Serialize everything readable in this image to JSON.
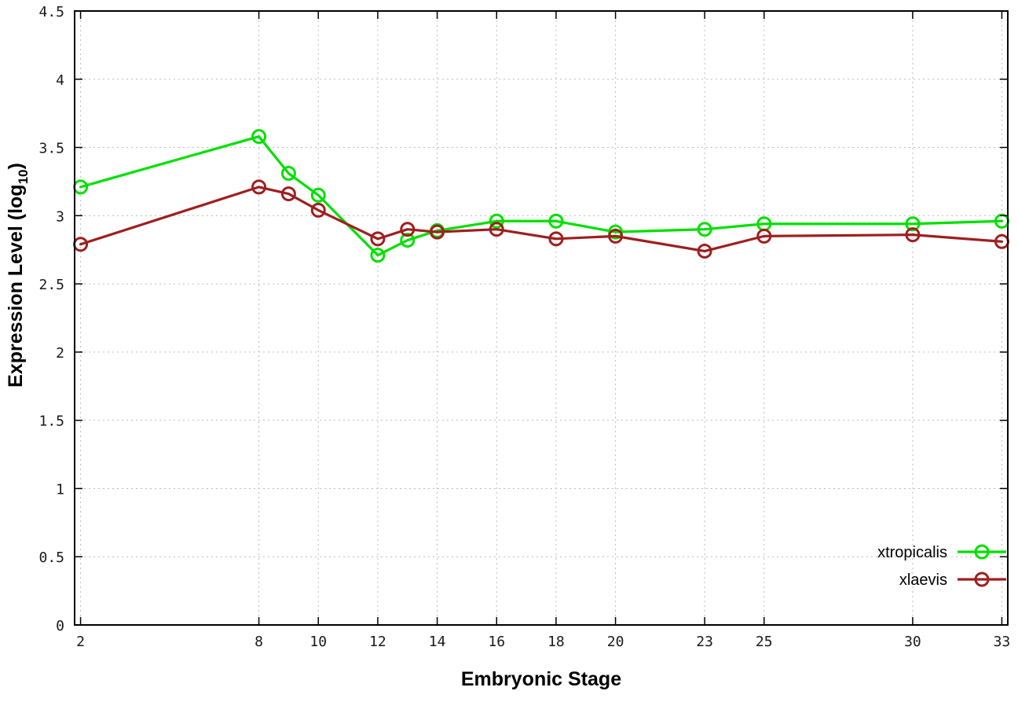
{
  "chart_data": {
    "type": "line",
    "title": "",
    "xlabel": "Embryonic Stage",
    "ylabel": "Expression Level (log10)",
    "ylabel_parts": {
      "prefix": "Expression Level (log",
      "sub": "10",
      "suffix": ")"
    },
    "xlim": [
      1.8,
      33.2
    ],
    "ylim": [
      0,
      4.5
    ],
    "grid": true,
    "legend_position": "bottom-right",
    "x_ticks": [
      {
        "v": 2,
        "label": "2"
      },
      {
        "v": 8,
        "label": "8"
      },
      {
        "v": 10,
        "label": "10"
      },
      {
        "v": 12,
        "label": "12"
      },
      {
        "v": 14,
        "label": "14"
      },
      {
        "v": 16,
        "label": "16"
      },
      {
        "v": 18,
        "label": "18"
      },
      {
        "v": 20,
        "label": "20"
      },
      {
        "v": 23,
        "label": "23"
      },
      {
        "v": 25,
        "label": "25"
      },
      {
        "v": 30,
        "label": "30"
      },
      {
        "v": 33,
        "label": "33"
      }
    ],
    "y_ticks": [
      {
        "v": 0,
        "label": "0"
      },
      {
        "v": 0.5,
        "label": "0.5"
      },
      {
        "v": 1,
        "label": "1"
      },
      {
        "v": 1.5,
        "label": "1.5"
      },
      {
        "v": 2,
        "label": "2"
      },
      {
        "v": 2.5,
        "label": "2.5"
      },
      {
        "v": 3,
        "label": "3"
      },
      {
        "v": 3.5,
        "label": "3.5"
      },
      {
        "v": 4,
        "label": "4"
      },
      {
        "v": 4.5,
        "label": "4.5"
      }
    ],
    "x": [
      2,
      8,
      9,
      10,
      12,
      13,
      14,
      16,
      18,
      20,
      23,
      25,
      30,
      33
    ],
    "series": [
      {
        "name": "xtropicalis",
        "color": "#00e000",
        "values": [
          3.21,
          3.58,
          3.31,
          3.15,
          2.71,
          2.82,
          2.89,
          2.96,
          2.96,
          2.88,
          2.9,
          2.94,
          2.94,
          2.96
        ]
      },
      {
        "name": "xlaevis",
        "color": "#9e1f1f",
        "values": [
          2.79,
          3.21,
          3.16,
          3.04,
          2.83,
          2.9,
          2.88,
          2.9,
          2.83,
          2.85,
          2.74,
          2.85,
          2.86,
          2.81
        ]
      }
    ],
    "colors": {
      "grid": "#bcbcbc",
      "axis": "#000000",
      "text": "#1a1a1a"
    }
  }
}
